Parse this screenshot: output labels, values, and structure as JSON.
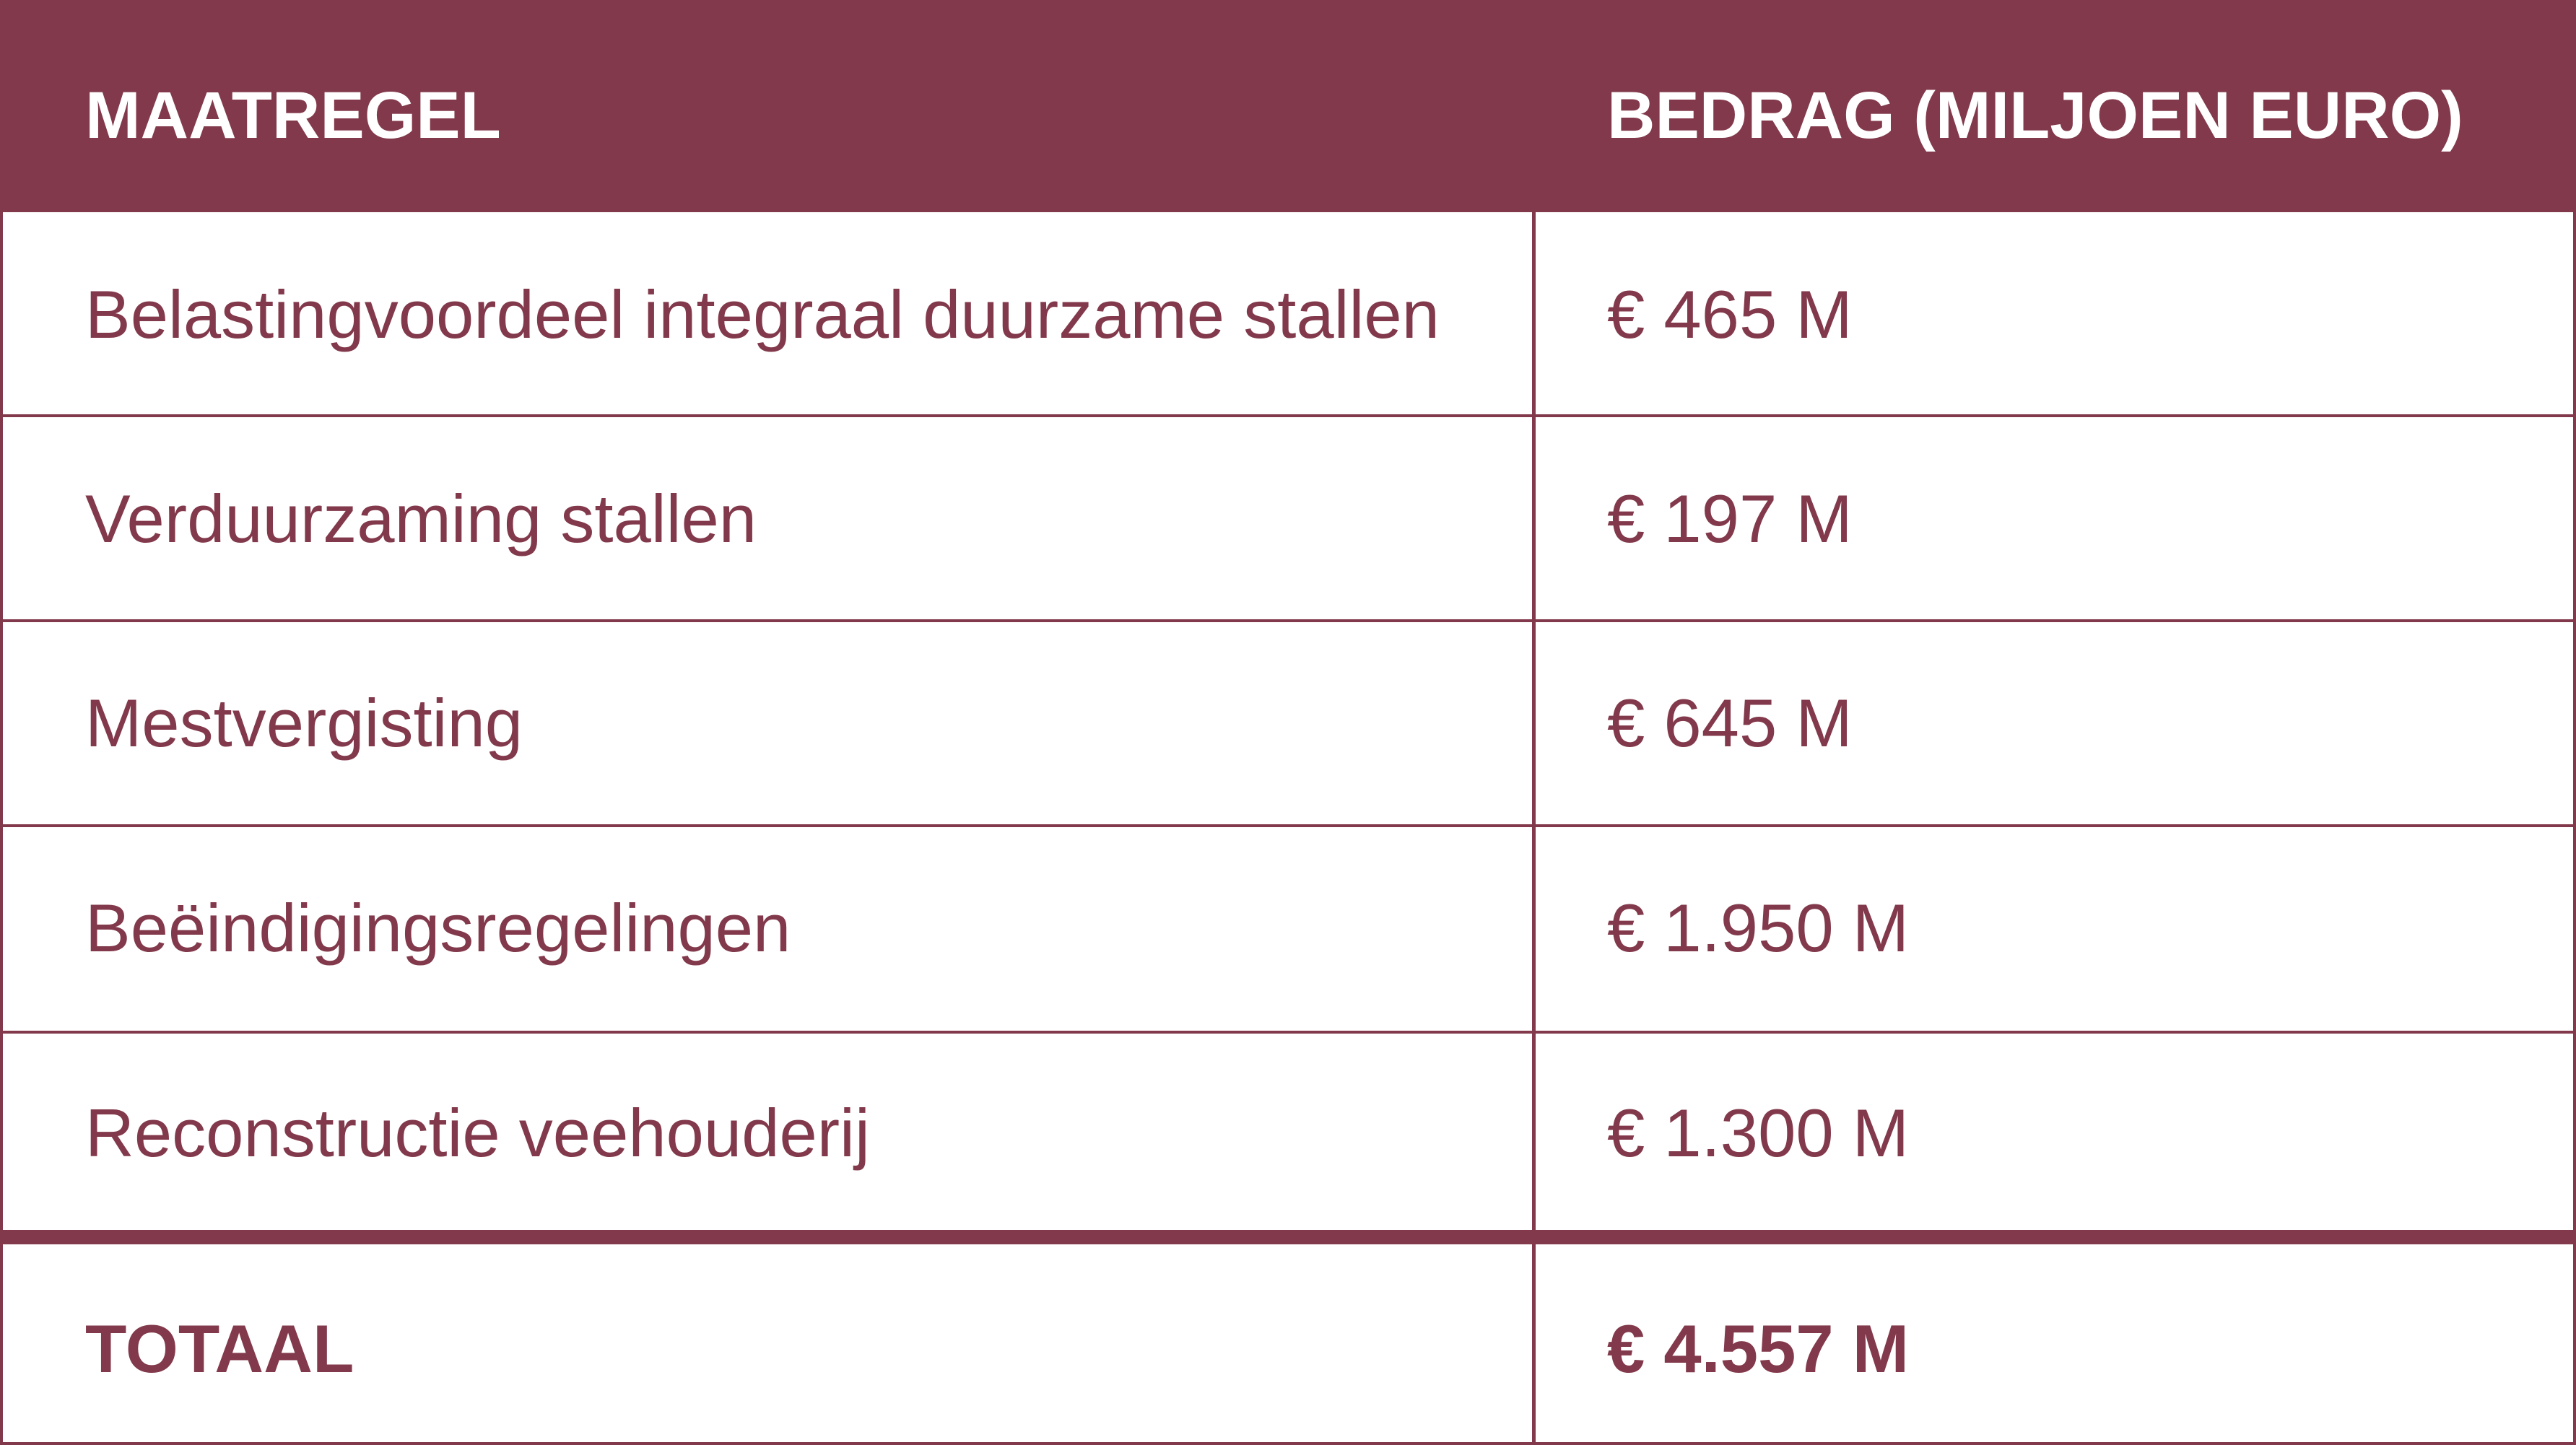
{
  "table": {
    "headers": {
      "measure": "MAATREGEL",
      "amount": "BEDRAG (MILJOEN EURO)"
    },
    "rows": [
      {
        "measure": "Belastingvoordeel integraal duurzame stallen",
        "amount": "€ 465 M"
      },
      {
        "measure": "Verduurzaming stallen",
        "amount": "€ 197 M"
      },
      {
        "measure": "Mestvergisting",
        "amount": "€ 645 M"
      },
      {
        "measure": "Beëindigingsregelingen",
        "amount": "€ 1.950 M"
      },
      {
        "measure": "Reconstructie veehouderij",
        "amount": "€ 1.300 M"
      }
    ],
    "total": {
      "label": "TOTAAL",
      "amount": "€ 4.557 M"
    }
  },
  "colors": {
    "accent": "#82394B",
    "background": "#FFFFFF"
  }
}
